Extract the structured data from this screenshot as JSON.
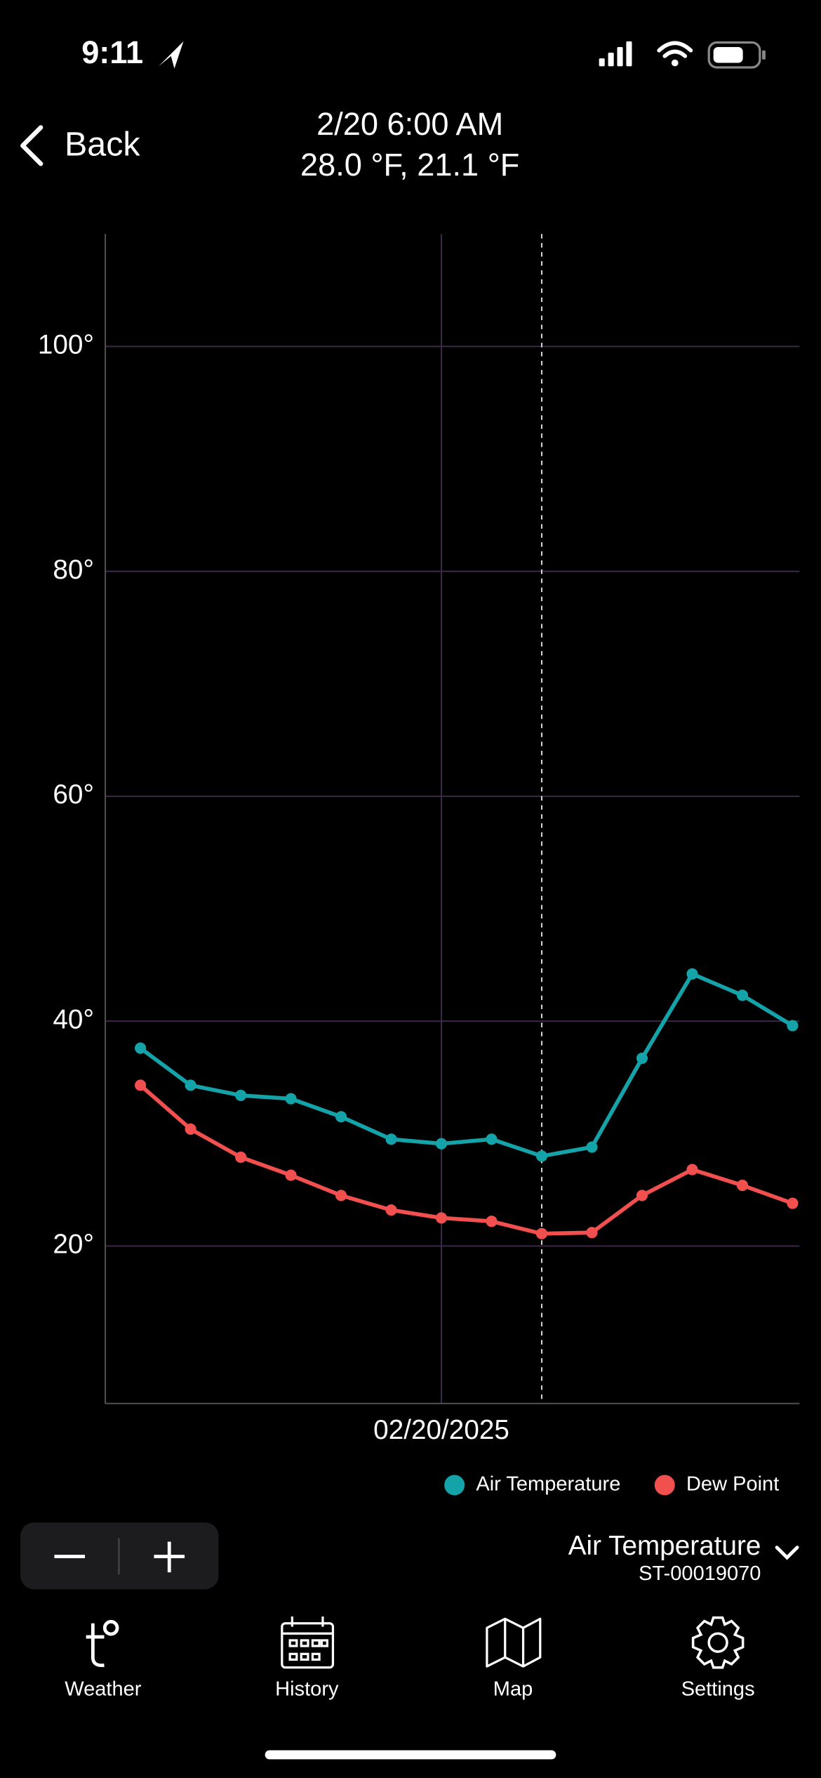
{
  "status_bar": {
    "time": "9:11"
  },
  "header": {
    "back": "Back",
    "title": "2/20 6:00 AM",
    "subtitle": "28.0 °F, 21.1 °F"
  },
  "chart_data": {
    "type": "line",
    "categories": [
      null,
      null,
      null,
      null,
      null,
      null,
      "02/20/2025",
      null,
      null,
      null,
      null,
      null,
      null,
      null
    ],
    "series": [
      {
        "name": "Air Temperature",
        "color": "#14a3a8",
        "values": [
          37.6,
          34.3,
          33.4,
          33.1,
          31.5,
          29.5,
          29.1,
          29.5,
          28.0,
          28.8,
          36.7,
          44.2,
          42.3,
          39.6
        ]
      },
      {
        "name": "Dew Point",
        "color": "#f24f4f",
        "values": [
          34.3,
          30.4,
          27.9,
          26.3,
          24.5,
          23.2,
          22.5,
          22.2,
          21.1,
          21.2,
          24.5,
          26.8,
          25.4,
          23.8
        ]
      }
    ],
    "ylim": [
      6,
      110
    ],
    "yticks": [
      {
        "value": 20,
        "label": "20°"
      },
      {
        "value": 40,
        "label": "40°"
      },
      {
        "value": 60,
        "label": "60°"
      },
      {
        "value": 80,
        "label": "80°"
      },
      {
        "value": 100,
        "label": "100°"
      }
    ],
    "grid": true,
    "selected": 8,
    "legend": "bottom-right"
  },
  "controls": {
    "sensor": "Air Temperature",
    "station": "ST-00019070"
  },
  "tab_bar": {
    "tabs": [
      "Weather",
      "History",
      "Map",
      "Settings"
    ]
  }
}
